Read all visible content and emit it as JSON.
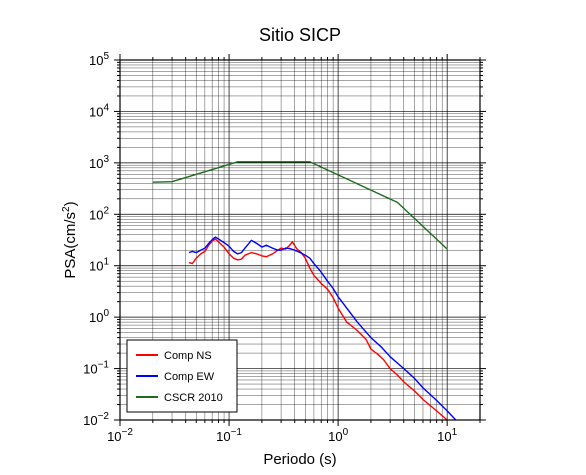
{
  "chart_data": {
    "type": "line",
    "title": "Sitio SICP",
    "xlabel": "Periodo (s)",
    "ylabel": "PSA(cm/s²)",
    "ylabel_main": "PSA(cm/s",
    "ylabel_sup": "2",
    "ylabel_close": ")",
    "x_scale": "log",
    "y_scale": "log",
    "xlim": [
      0.01,
      20
    ],
    "ylim": [
      0.01,
      100000
    ],
    "grid": true,
    "legend_position": "bottom-left",
    "x_ticks": [
      {
        "base": "10",
        "exp": "−2",
        "value": 0.01
      },
      {
        "base": "10",
        "exp": "−1",
        "value": 0.1
      },
      {
        "base": "10",
        "exp": "0",
        "value": 1
      },
      {
        "base": "10",
        "exp": "1",
        "value": 10
      }
    ],
    "y_ticks": [
      {
        "base": "10",
        "exp": "−2",
        "value": 0.01
      },
      {
        "base": "10",
        "exp": "−1",
        "value": 0.1
      },
      {
        "base": "10",
        "exp": "0",
        "value": 1
      },
      {
        "base": "10",
        "exp": "1",
        "value": 10
      },
      {
        "base": "10",
        "exp": "2",
        "value": 100
      },
      {
        "base": "10",
        "exp": "3",
        "value": 1000
      },
      {
        "base": "10",
        "exp": "4",
        "value": 10000
      },
      {
        "base": "10",
        "exp": "5",
        "value": 100000
      }
    ],
    "series": [
      {
        "name": "Comp NS",
        "color": "#ff0000",
        "x": [
          0.043,
          0.046,
          0.05,
          0.055,
          0.06,
          0.065,
          0.07,
          0.075,
          0.08,
          0.09,
          0.1,
          0.11,
          0.12,
          0.13,
          0.14,
          0.16,
          0.18,
          0.2,
          0.22,
          0.25,
          0.28,
          0.3,
          0.33,
          0.36,
          0.38,
          0.42,
          0.46,
          0.5,
          0.55,
          0.6,
          0.7,
          0.8,
          0.9,
          1.0,
          1.2,
          1.5,
          1.8,
          2.0,
          2.3,
          2.6,
          3.0,
          3.5,
          4.0,
          5.0,
          6.0,
          8.0,
          10.0
        ],
        "y": [
          11.5,
          11,
          14,
          17,
          19,
          25,
          30,
          33,
          29,
          23,
          17,
          14,
          13,
          13.5,
          16,
          18,
          17,
          15.5,
          15,
          17,
          20,
          22,
          21,
          25,
          29,
          21,
          18,
          14,
          9,
          6.5,
          4.5,
          3.5,
          2.4,
          1.5,
          0.8,
          0.55,
          0.37,
          0.24,
          0.19,
          0.15,
          0.1,
          0.075,
          0.055,
          0.037,
          0.025,
          0.015,
          0.01
        ]
      },
      {
        "name": "Comp EW",
        "color": "#0000ff",
        "x": [
          0.043,
          0.046,
          0.05,
          0.055,
          0.06,
          0.065,
          0.07,
          0.075,
          0.08,
          0.09,
          0.1,
          0.11,
          0.12,
          0.13,
          0.14,
          0.16,
          0.18,
          0.2,
          0.22,
          0.25,
          0.28,
          0.3,
          0.33,
          0.36,
          0.4,
          0.45,
          0.5,
          0.55,
          0.6,
          0.7,
          0.8,
          0.9,
          1.0,
          1.2,
          1.5,
          2.0,
          2.5,
          3.0,
          4.0,
          5.0,
          6.0,
          8.0,
          10.0,
          12.0
        ],
        "y": [
          18,
          19,
          18,
          20,
          22,
          27,
          32,
          36,
          33,
          28,
          24,
          19,
          17,
          18,
          22,
          31,
          27,
          23,
          25,
          22,
          20,
          20,
          22,
          21.5,
          20,
          18,
          16,
          14,
          11,
          7.5,
          5,
          3.6,
          2.5,
          1.5,
          0.8,
          0.4,
          0.26,
          0.17,
          0.1,
          0.065,
          0.042,
          0.024,
          0.015,
          0.01
        ]
      },
      {
        "name": "CSCR 2010",
        "color": "#1e6b1e",
        "x": [
          0.02,
          0.03,
          0.12,
          0.55,
          3.5,
          10.0
        ],
        "y": [
          420,
          430,
          1050,
          1050,
          170,
          21
        ]
      }
    ]
  }
}
